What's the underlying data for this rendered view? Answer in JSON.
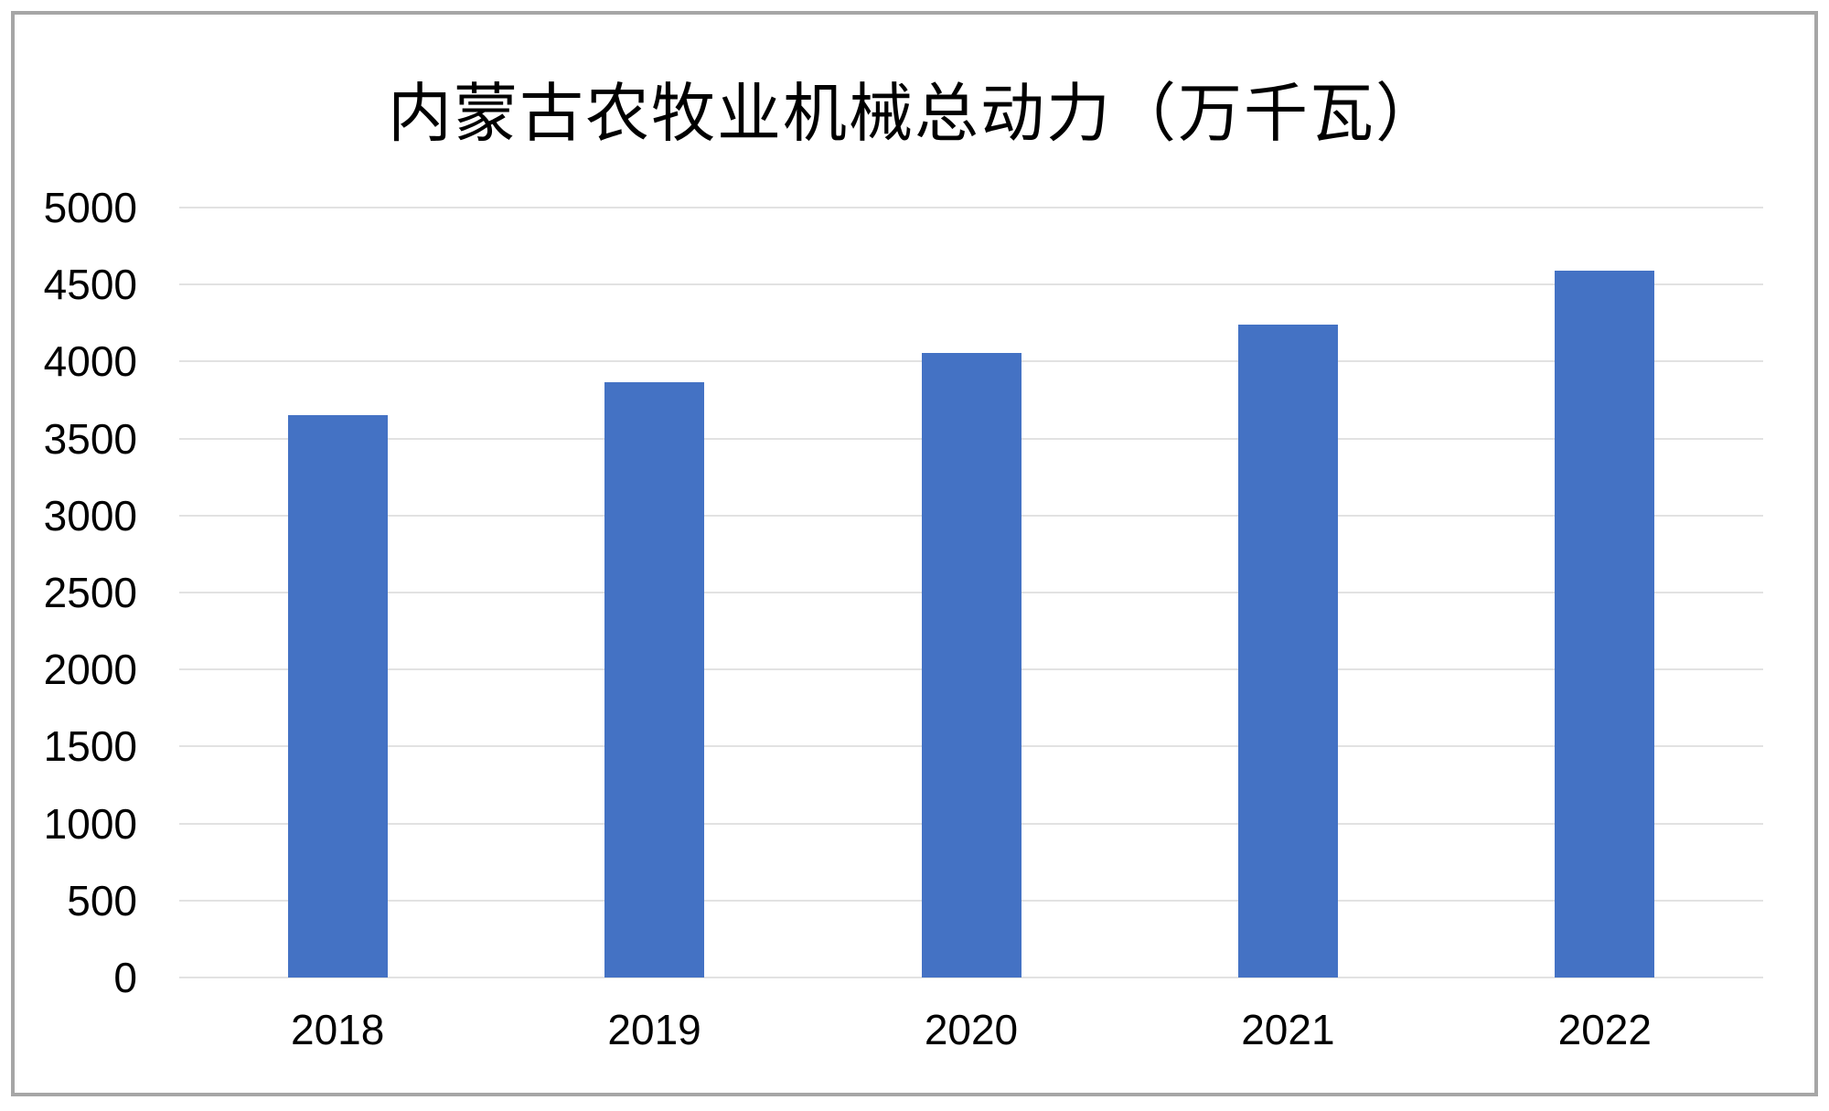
{
  "frame": {
    "border_color": "#a6a6a6",
    "background_color": "#ffffff"
  },
  "chart_data": {
    "type": "bar",
    "title": "内蒙古农牧业机械总动力（万千瓦）",
    "categories": [
      "2018",
      "2019",
      "2020",
      "2021",
      "2022"
    ],
    "values": [
      3655,
      3865,
      4055,
      4240,
      4590
    ],
    "xlabel": "",
    "ylabel": "",
    "ylim": [
      0,
      5000
    ],
    "ytick_interval": 500,
    "yticks": [
      0,
      500,
      1000,
      1500,
      2000,
      2500,
      3000,
      3500,
      4000,
      4500,
      5000
    ],
    "grid": true,
    "legend": "none",
    "bar_color": "#4472c4",
    "gridline_color": "#e2e2e2",
    "axis_line_color": "#e2e2e2",
    "text_color": "#000000"
  }
}
